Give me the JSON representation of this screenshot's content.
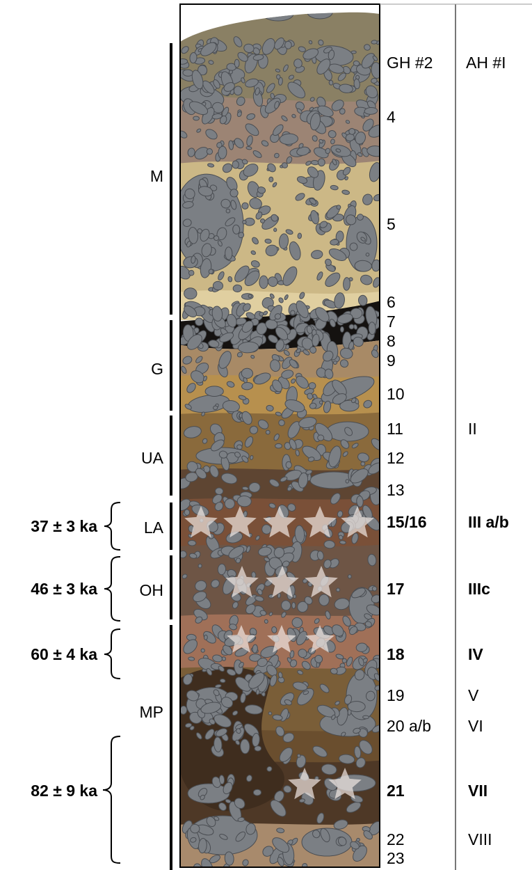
{
  "headers": {
    "gh": "GH #2",
    "ah": "AH #I"
  },
  "gh_labels": {
    "l4": "4",
    "l5": "5",
    "l6": "6",
    "l7": "7",
    "l8": "8",
    "l9": "9",
    "l10": "10",
    "l11": "11",
    "l12": "12",
    "l13": "13",
    "l15_16": "15/16",
    "l17": "17",
    "l18": "18",
    "l19": "19",
    "l20": "20 a/b",
    "l21": "21",
    "l22": "22",
    "l23": "23"
  },
  "ah_labels": {
    "ii": "II",
    "iii_ab": "III a/b",
    "iiic": "IIIc",
    "iv": "IV",
    "v": "V",
    "vi": "VI",
    "vii": "VII",
    "viii": "VIII"
  },
  "units": {
    "m": "M",
    "g": "G",
    "ua": "UA",
    "la": "LA",
    "oh": "OH",
    "mp": "MP"
  },
  "ages": {
    "a37": "37 ± 3 ka",
    "a46": "46 ± 3 ka",
    "a60": "60 ± 4 ka",
    "a82": "82 ± 9 ka"
  },
  "colors": {
    "stone": "#7b7f84",
    "stone_edge": "#4a4d52",
    "layer_m_top": "#8a8064",
    "layer_m_mid": "#9c8474",
    "layer_sand": "#ccb886",
    "layer_black": "#151210",
    "layer_g": "#a88a66",
    "layer_g_low": "#b7904e",
    "layer_ua": "#8a6a3c",
    "layer_la": "#7a5038",
    "layer_oh": "#6e5545",
    "layer_iv": "#a07058",
    "layer_mp": "#7a5e38",
    "layer_dark": "#3f2d1e",
    "layer_base": "#a88a6c",
    "star": "#f1e7e3"
  }
}
